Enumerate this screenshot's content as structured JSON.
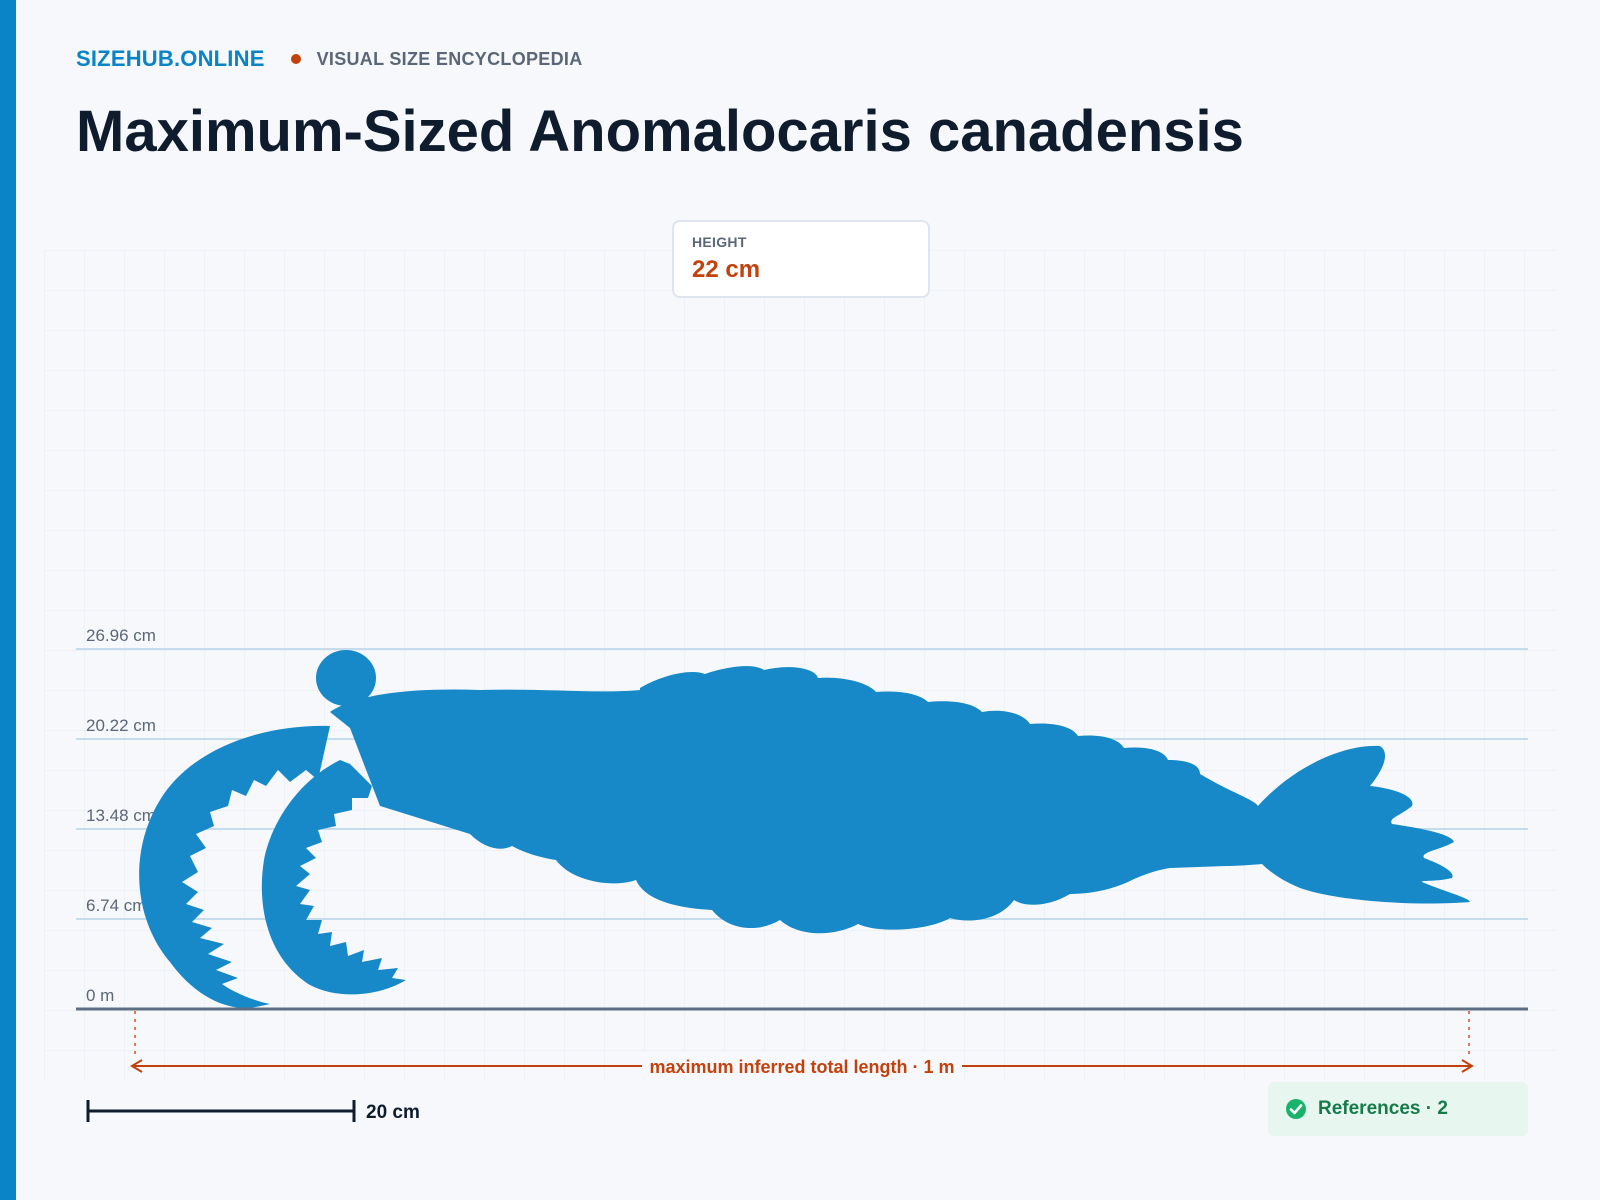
{
  "brand": {
    "name": "SIZEHUB.ONLINE",
    "tagline": "VISUAL SIZE ENCYCLOPEDIA"
  },
  "title": "Maximum-Sized Anomalocaris canadensis",
  "stat": {
    "label": "HEIGHT",
    "value": "22 cm"
  },
  "axis": {
    "ticks": [
      "0 m",
      "6.74 cm",
      "13.48 cm",
      "20.22 cm",
      "26.96 cm"
    ]
  },
  "length_annotation": "maximum inferred total length · 1 m",
  "scale_bar": {
    "label": "20 cm"
  },
  "references": {
    "label": "References · 2"
  },
  "colors": {
    "brand": "#0a84c6",
    "accent": "#c2410c",
    "silhouette": "#1789c8",
    "refs_bg": "#e7f6ee",
    "refs_text": "#177a4b"
  },
  "icons": {
    "references": "check-circle-icon"
  }
}
